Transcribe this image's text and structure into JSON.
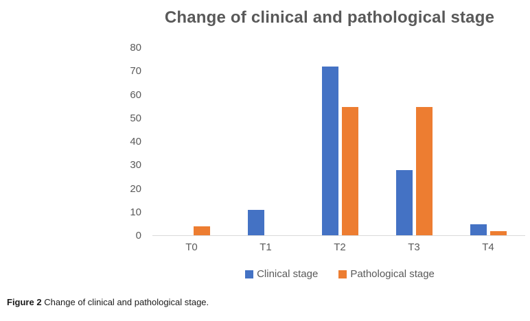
{
  "figure": {
    "caption_label": "Figure 2",
    "caption_text": "Change of clinical and pathological stage."
  },
  "chart_data": {
    "type": "bar",
    "title": "Change of clinical and pathological stage",
    "categories": [
      "T0",
      "T1",
      "T2",
      "T3",
      "T4"
    ],
    "series": [
      {
        "name": "Clinical stage",
        "color": "#4472C4",
        "values": [
          0,
          11,
          72,
          28,
          5
        ]
      },
      {
        "name": "Pathological stage",
        "color": "#ED7D31",
        "values": [
          4,
          0,
          55,
          55,
          2
        ]
      }
    ],
    "xlabel": "",
    "ylabel": "",
    "ylim": [
      0,
      80
    ],
    "yticks": [
      0,
      10,
      20,
      30,
      40,
      50,
      60,
      70,
      80
    ],
    "grid": false,
    "legend_position": "bottom",
    "colors": {
      "title_text": "#595959",
      "axis_text": "#595959",
      "axis_line": "#d9d9d9",
      "background": "#ffffff"
    }
  }
}
